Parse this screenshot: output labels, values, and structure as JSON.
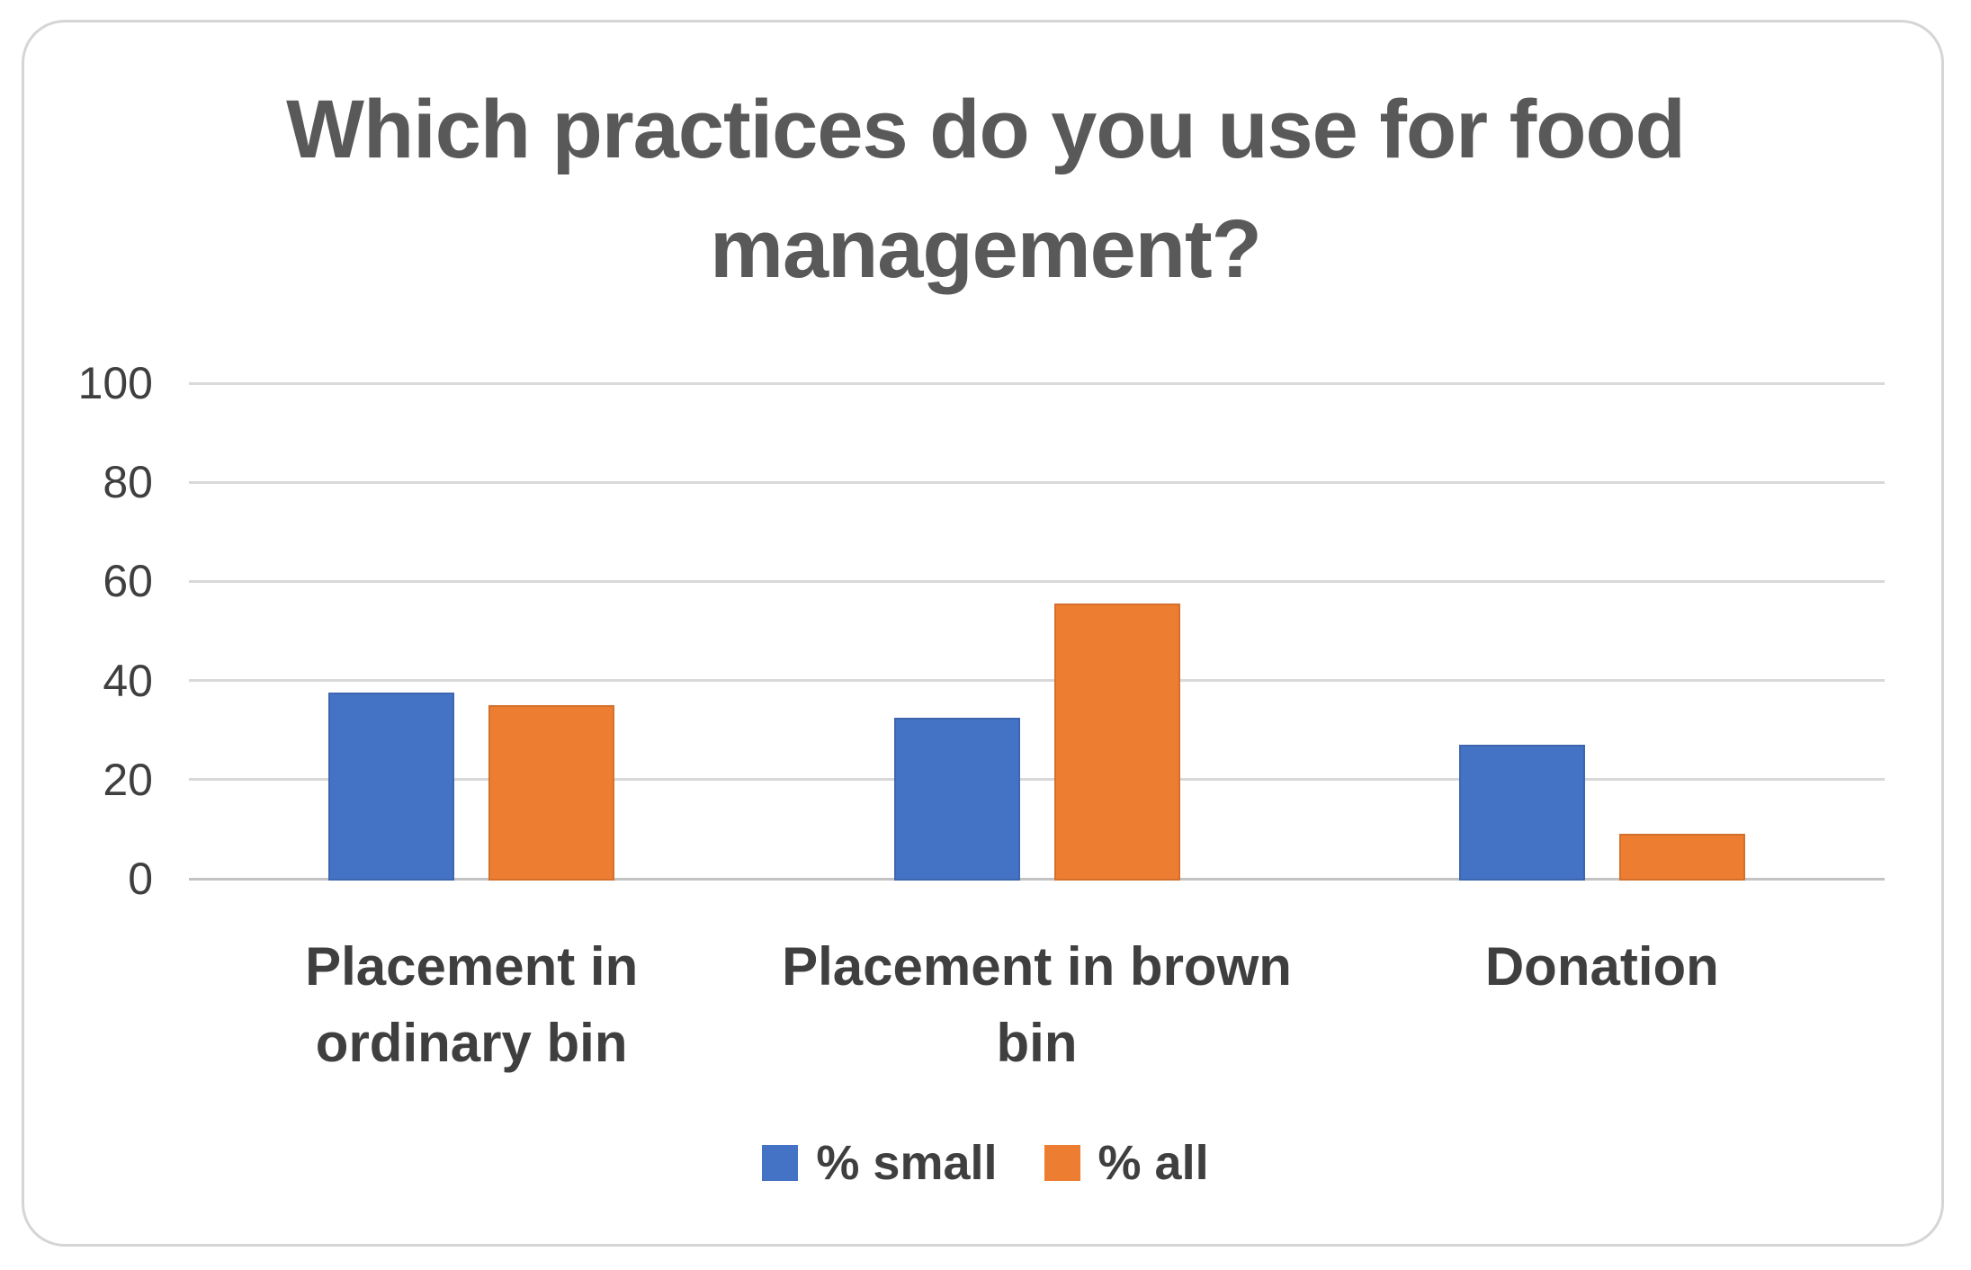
{
  "chart_data": {
    "type": "bar",
    "title": "Which practices do you use for food management?",
    "categories": [
      "Placement in ordinary bin",
      "Placement in brown bin",
      "Donation"
    ],
    "category_label_lines": [
      [
        "Placement in",
        "ordinary bin"
      ],
      [
        "Placement in brown",
        "bin"
      ],
      [
        "Donation"
      ]
    ],
    "series": [
      {
        "name": "% small",
        "color": "#4472C4",
        "values": [
          37.5,
          32.5,
          27
        ]
      },
      {
        "name": "% all",
        "color": "#ED7D31",
        "values": [
          35,
          55.5,
          9
        ]
      }
    ],
    "ylim": [
      0,
      100
    ],
    "yticks": [
      0,
      20,
      40,
      60,
      80,
      100
    ],
    "grid": true,
    "legend_position": "bottom",
    "xlabel": "",
    "ylabel": ""
  },
  "frame": {
    "background_color": "#ffffff",
    "border_color": "#d5d5d5",
    "gridline_color": "#d9d9d9",
    "axis_line_color": "#c3c3c3",
    "title_color": "#595959",
    "label_color": "#3f3f3f"
  }
}
